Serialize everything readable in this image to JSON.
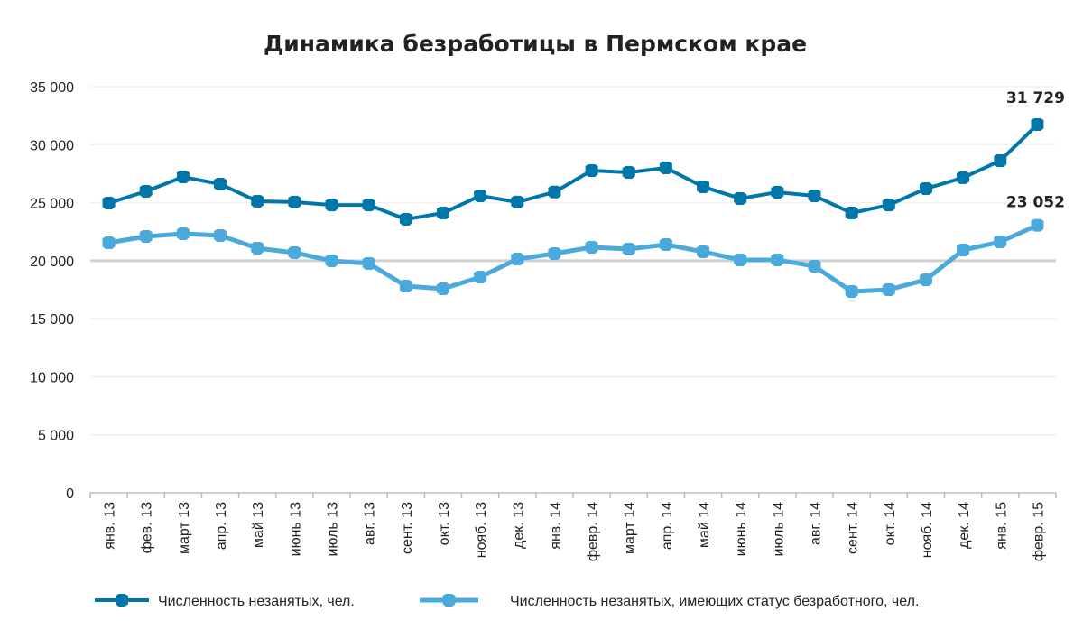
{
  "chart_data": {
    "type": "line",
    "title": "Динамика безработицы в Пермском крае",
    "xlabel": "",
    "ylabel": "",
    "ylim": [
      0,
      35000
    ],
    "yticks": [
      "0",
      "5 000",
      "10 000",
      "15 000",
      "20 000",
      "25 000",
      "30 000",
      "35 000"
    ],
    "ytick_values": [
      0,
      5000,
      10000,
      15000,
      20000,
      25000,
      30000,
      35000
    ],
    "grid": true,
    "legend_position": "bottom",
    "categories": [
      "янв. 13",
      "фев. 13",
      "март 13",
      "апр. 13",
      "май 13",
      "июнь 13",
      "июль 13",
      "авг. 13",
      "сент. 13",
      "окт. 13",
      "нояб. 13",
      "дек. 13",
      "янв. 14",
      "февр. 14",
      "март 14",
      "апр. 14",
      "май 14",
      "июнь 14",
      "июль 14",
      "авг. 14",
      "сент. 14",
      "окт. 14",
      "нояб. 14",
      "дек. 14",
      "янв. 15",
      "февр. 15"
    ],
    "series": [
      {
        "name": "Численность незанятых, чел.",
        "color": "#0077A8",
        "values": [
          24970,
          25980,
          27220,
          26600,
          25120,
          25050,
          24800,
          24800,
          23570,
          24110,
          25590,
          25050,
          25920,
          27770,
          27610,
          28000,
          26370,
          25360,
          25900,
          25590,
          24110,
          24800,
          26210,
          27150,
          28620,
          31729
        ],
        "last_label": "31 729"
      },
      {
        "name": "Численность незанятых, имеющих статус безработного, чел.",
        "color": "#4BAADB",
        "values": [
          21540,
          22090,
          22320,
          22170,
          21080,
          20690,
          19990,
          19760,
          17810,
          17580,
          18590,
          20140,
          20610,
          21160,
          21000,
          21390,
          20770,
          20070,
          20070,
          19520,
          17340,
          17500,
          18360,
          20920,
          21620,
          23052
        ],
        "last_label": "23 052"
      }
    ]
  }
}
